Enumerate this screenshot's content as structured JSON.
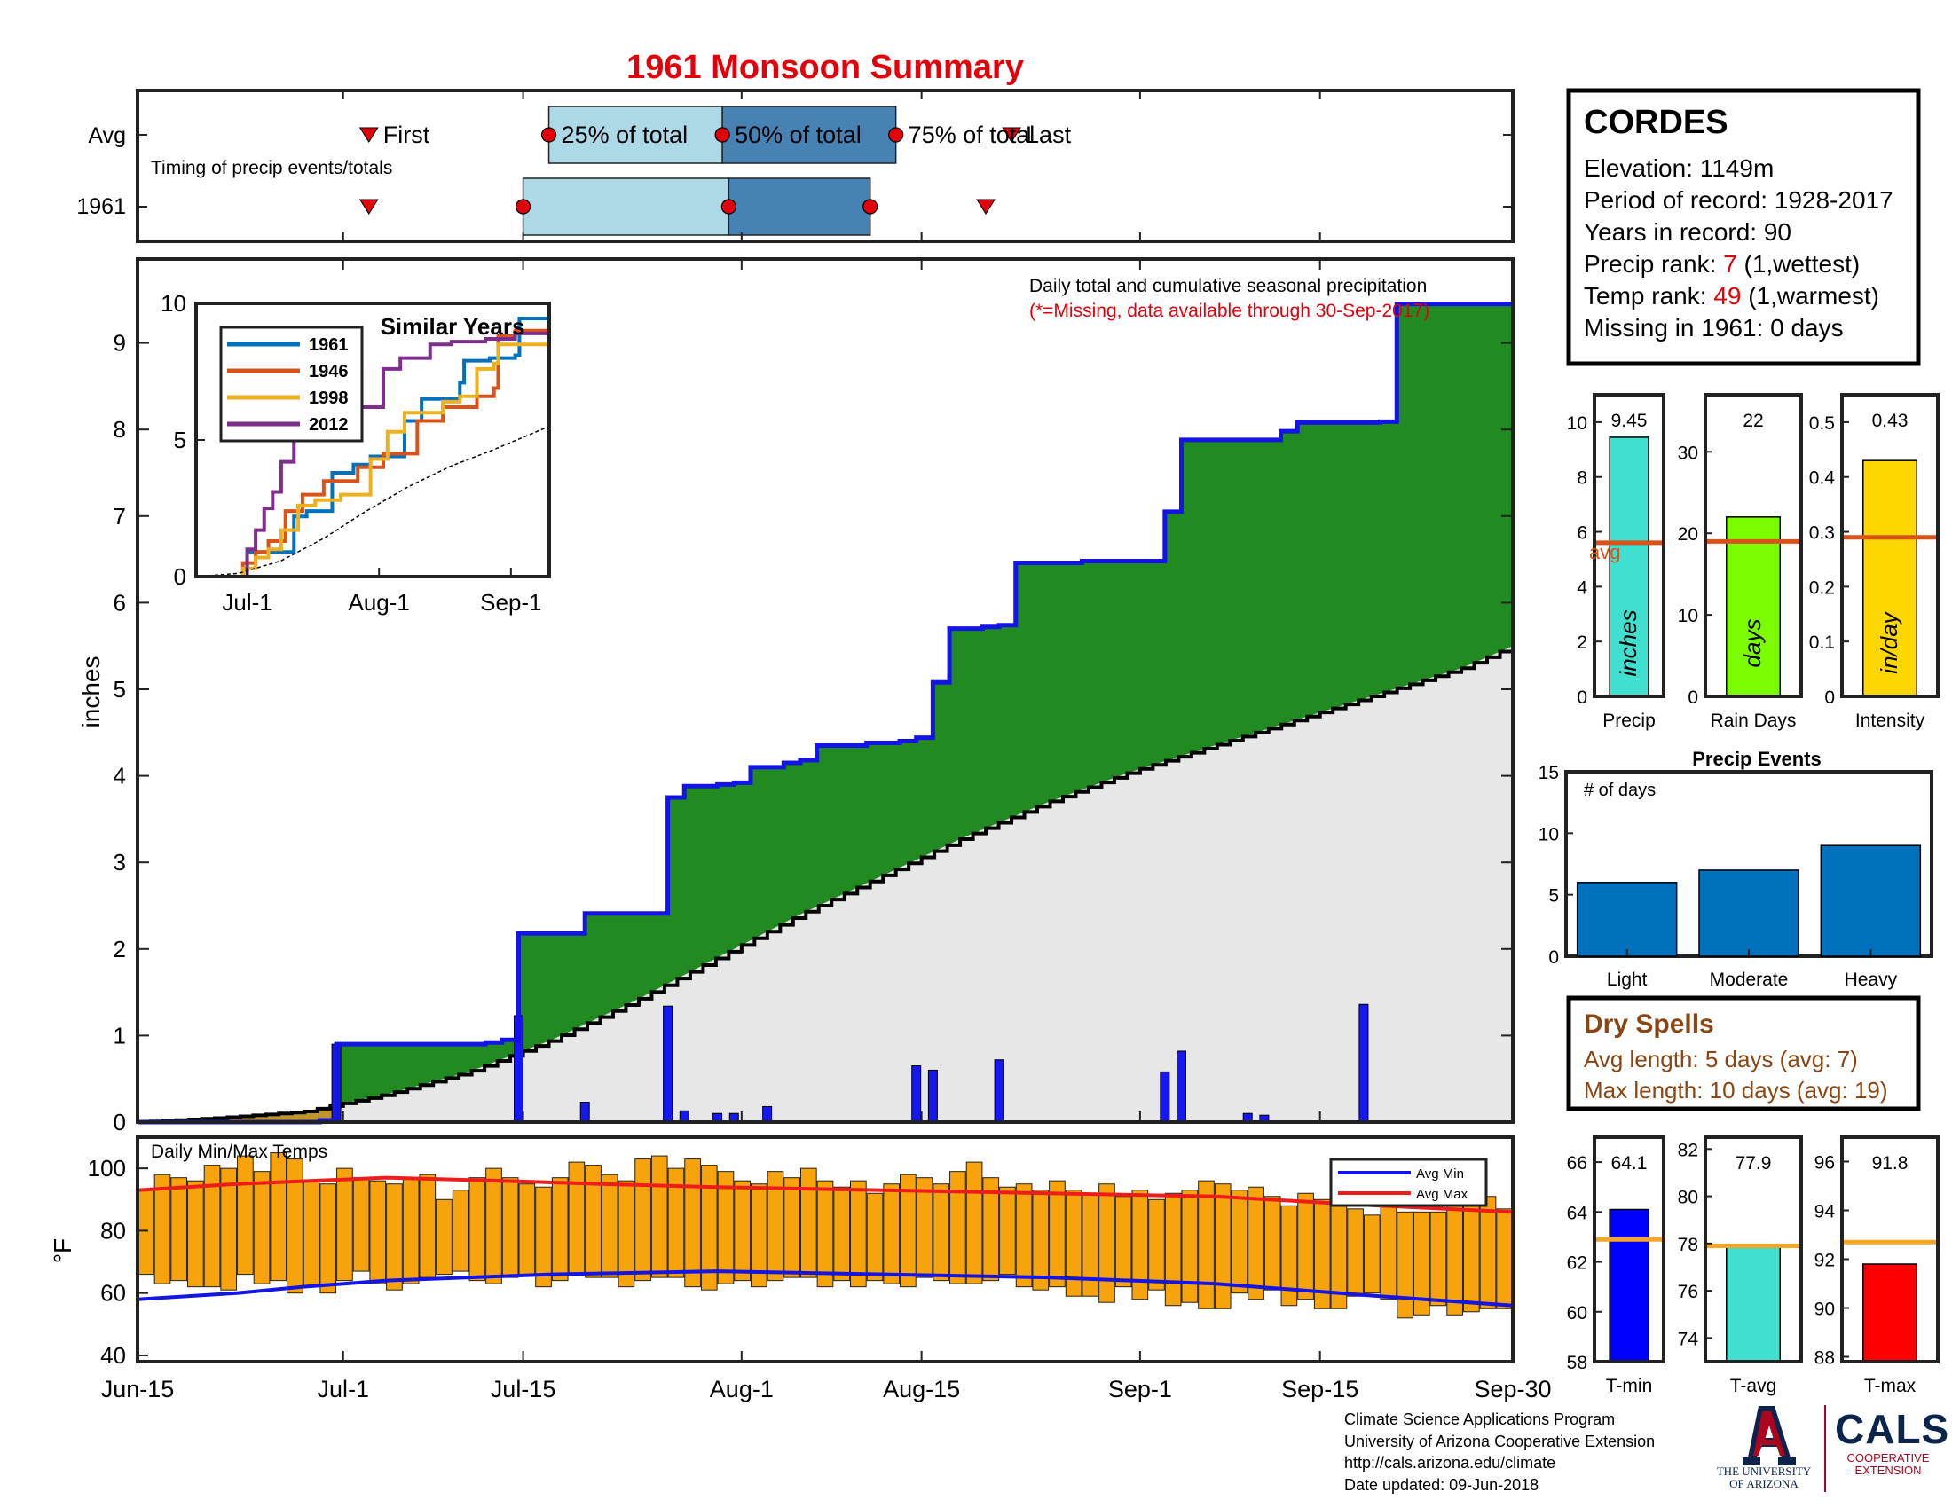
{
  "title": "1961 Monsoon Summary",
  "colors": {
    "title": "#e3000b",
    "green_fill": "#218a21",
    "avg_fill": "#e8e7e7",
    "cum_line": "#1414e6",
    "daily_bar": "#1717f2",
    "temp_bar": "#f7a30b",
    "avg_max": "#ef1c1c",
    "avg_min": "#1414e6",
    "timing_light": "#add8e6",
    "timing_dark": "#4682b4",
    "marker": "#e3000b",
    "rank_red": "#e3000b",
    "dry_spell": "#8b4513",
    "avg_line": "#d95319",
    "temp_avg_line": "#f5a623"
  },
  "timing_panel": {
    "row_labels": [
      "Avg",
      "1961"
    ],
    "caption": "Timing of precip events/totals",
    "labels": [
      "First",
      "25% of total",
      "50% of total",
      "75% of total",
      "Last"
    ],
    "avg_days": {
      "first": 18,
      "p25": 32,
      "p50": 45.5,
      "p75": 59,
      "last": 68
    },
    "year_days": {
      "first": 18,
      "p25": 30,
      "p50": 46,
      "p75": 57,
      "last": 66
    }
  },
  "station": {
    "name": "CORDES",
    "elevation_label": "Elevation: 1149m",
    "period_label": "Period of record: 1928-2017",
    "years_label": "Years in record: 90",
    "precip_rank_prefix": "Precip rank: ",
    "precip_rank_value": "7",
    "precip_rank_suffix": " (1,wettest)",
    "temp_rank_prefix": "Temp rank: ",
    "temp_rank_value": "49",
    "temp_rank_suffix": " (1,warmest)",
    "missing_label": "Missing in 1961: 0 days"
  },
  "main_chart": {
    "ylabel": "inches",
    "note": "Daily total and cumulative seasonal precipitation",
    "missing_note": "(*=Missing, data available through 30-Sep-2017)",
    "x_ticks": [
      "Jun-15",
      "Jul-1",
      "Jul-15",
      "Aug-1",
      "Aug-15",
      "Sep-1",
      "Sep-15",
      "Sep-30"
    ],
    "y_ticks": [
      "0",
      "1",
      "2",
      "3",
      "4",
      "5",
      "6",
      "7",
      "8",
      "9"
    ]
  },
  "inset": {
    "title": "Similar Years",
    "x_ticks": [
      "Jul-1",
      "Aug-1",
      "Sep-1"
    ],
    "y_ticks": [
      "0",
      "5",
      "10"
    ],
    "legend": [
      "1961",
      "1946",
      "1998",
      "2012"
    ]
  },
  "bar_panels": [
    {
      "value_label": "9.45",
      "unit": "inches",
      "xlabel": "Precip",
      "avg_label": "avg",
      "y_ticks": [
        "0",
        "2",
        "4",
        "6",
        "8",
        "10"
      ]
    },
    {
      "value_label": "22",
      "unit": "days",
      "xlabel": "Rain Days",
      "y_ticks": [
        "0",
        "10",
        "20",
        "30"
      ]
    },
    {
      "value_label": "0.43",
      "unit": "in/day",
      "xlabel": "Intensity",
      "y_ticks": [
        "0",
        "0.1",
        "0.2",
        "0.3",
        "0.4",
        "0.5"
      ]
    }
  ],
  "events": {
    "title": "Precip Events",
    "ylabel": "# of days",
    "y_ticks": [
      "0",
      "5",
      "10",
      "15"
    ],
    "categories": [
      "Light",
      "Moderate",
      "Heavy"
    ]
  },
  "dry_spells": {
    "title": "Dry Spells",
    "avg_length": "Avg length: 5 days (avg: 7)",
    "max_length": "Max length: 10 days (avg: 19)"
  },
  "temp_chart": {
    "title": "Daily Min/Max Temps",
    "ylabel": "°F",
    "legend": [
      "Avg Min",
      "Avg Max"
    ],
    "y_ticks": [
      "40",
      "60",
      "80",
      "100"
    ]
  },
  "temp_panels": [
    {
      "value_label": "64.1",
      "xlabel": "T-min",
      "y_ticks": [
        "58",
        "60",
        "62",
        "64",
        "66"
      ]
    },
    {
      "value_label": "77.9",
      "xlabel": "T-avg",
      "y_ticks": [
        "74",
        "76",
        "78",
        "80",
        "82"
      ]
    },
    {
      "value_label": "91.8",
      "xlabel": "T-max",
      "y_ticks": [
        "88",
        "90",
        "92",
        "94",
        "96"
      ]
    }
  ],
  "credits": {
    "line1": "Climate Science Applications Program",
    "line2": "University of Arizona Cooperative Extension",
    "line3": "http://cals.arizona.edu/climate",
    "line4": " Date updated: 09-Jun-2018"
  },
  "logos": {
    "ua_letter": "A",
    "ua_line1": "THE UNIVERSITY",
    "ua_line2": "OF ARIZONA",
    "cals_word": "CALS",
    "cals_line1": "COOPERATIVE",
    "cals_line2": "EXTENSION"
  },
  "chart_data": [
    {
      "type": "area",
      "name": "cumulative_precip",
      "title": "Daily total and cumulative seasonal precipitation",
      "ylabel": "inches",
      "xlim": [
        "Jun-15",
        "Sep-30"
      ],
      "ylim": [
        0,
        10
      ],
      "cumulative_1961": [
        [
          0,
          0
        ],
        [
          11,
          0.02
        ],
        [
          12,
          0.9
        ],
        [
          21,
          0.92
        ],
        [
          22,
          0.95
        ],
        [
          23,
          2.18
        ],
        [
          26,
          2.18
        ],
        [
          27,
          2.41
        ],
        [
          31,
          2.41
        ],
        [
          32,
          3.75
        ],
        [
          33,
          3.88
        ],
        [
          35,
          3.9
        ],
        [
          36,
          3.92
        ],
        [
          37,
          4.1
        ],
        [
          39,
          4.15
        ],
        [
          40,
          4.18
        ],
        [
          41,
          4.35
        ],
        [
          44,
          4.38
        ],
        [
          46,
          4.4
        ],
        [
          47,
          4.44
        ],
        [
          48,
          5.08
        ],
        [
          49,
          5.7
        ],
        [
          51,
          5.72
        ],
        [
          52,
          5.74
        ],
        [
          53,
          6.46
        ],
        [
          57,
          6.48
        ],
        [
          62,
          7.05
        ],
        [
          63,
          7.88
        ],
        [
          68,
          7.88
        ],
        [
          69,
          7.98
        ],
        [
          70,
          8.08
        ],
        [
          75,
          8.09
        ],
        [
          76,
          9.45
        ],
        [
          83,
          9.45
        ]
      ],
      "avg_cumulative": [
        [
          0,
          0
        ],
        [
          5,
          0.05
        ],
        [
          10,
          0.12
        ],
        [
          12,
          0.2
        ],
        [
          15,
          0.32
        ],
        [
          20,
          0.58
        ],
        [
          25,
          0.95
        ],
        [
          30,
          1.4
        ],
        [
          35,
          1.9
        ],
        [
          40,
          2.4
        ],
        [
          45,
          2.85
        ],
        [
          50,
          3.3
        ],
        [
          55,
          3.7
        ],
        [
          60,
          4.05
        ],
        [
          65,
          4.35
        ],
        [
          70,
          4.65
        ],
        [
          75,
          4.95
        ],
        [
          80,
          5.25
        ],
        [
          83,
          5.5
        ]
      ],
      "daily_precip": [
        [
          12,
          0.9
        ],
        [
          23,
          1.23
        ],
        [
          27,
          0.23
        ],
        [
          32,
          1.34
        ],
        [
          33,
          0.13
        ],
        [
          35,
          0.1
        ],
        [
          36,
          0.1
        ],
        [
          38,
          0.18
        ],
        [
          47,
          0.65
        ],
        [
          48,
          0.6
        ],
        [
          52,
          0.72
        ],
        [
          62,
          0.58
        ],
        [
          63,
          0.82
        ],
        [
          67,
          0.1
        ],
        [
          68,
          0.08
        ],
        [
          74,
          1.36
        ]
      ]
    },
    {
      "type": "line",
      "name": "similar_years",
      "title": "Similar Years",
      "xlim": [
        "Jun-15",
        "Sep-30"
      ],
      "ylim": [
        0,
        10
      ],
      "series": [
        {
          "name": "1961",
          "points": [
            [
              0,
              0
            ],
            [
              11,
              0
            ],
            [
              12,
              0.9
            ],
            [
              22,
              0.9
            ],
            [
              23,
              2.2
            ],
            [
              26,
              2.4
            ],
            [
              32,
              3.8
            ],
            [
              37,
              4.1
            ],
            [
              41,
              4.4
            ],
            [
              47,
              4.4
            ],
            [
              49,
              5.7
            ],
            [
              53,
              6.5
            ],
            [
              62,
              7.1
            ],
            [
              63,
              7.9
            ],
            [
              69,
              8.0
            ],
            [
              75,
              8.1
            ],
            [
              76,
              9.45
            ],
            [
              83,
              9.45
            ]
          ]
        },
        {
          "name": "1946",
          "points": [
            [
              0,
              0
            ],
            [
              10,
              0
            ],
            [
              11,
              0.5
            ],
            [
              14,
              0.9
            ],
            [
              17,
              1.3
            ],
            [
              21,
              2.4
            ],
            [
              25,
              3.0
            ],
            [
              30,
              3.5
            ],
            [
              38,
              4.0
            ],
            [
              44,
              4.5
            ],
            [
              52,
              5.7
            ],
            [
              58,
              6.2
            ],
            [
              66,
              6.6
            ],
            [
              70,
              6.9
            ],
            [
              71,
              8.8
            ],
            [
              75,
              9.0
            ],
            [
              83,
              9.05
            ]
          ]
        },
        {
          "name": "1998",
          "points": [
            [
              0,
              0
            ],
            [
              10,
              0
            ],
            [
              11,
              0.3
            ],
            [
              14,
              0.7
            ],
            [
              17,
              1.0
            ],
            [
              20,
              1.7
            ],
            [
              24,
              2.6
            ],
            [
              28,
              2.8
            ],
            [
              34,
              3.0
            ],
            [
              38,
              3.0
            ],
            [
              41,
              4.3
            ],
            [
              45,
              5.3
            ],
            [
              49,
              6.0
            ],
            [
              58,
              6.4
            ],
            [
              62,
              6.6
            ],
            [
              66,
              7.6
            ],
            [
              70,
              7.8
            ],
            [
              71,
              8.5
            ],
            [
              83,
              8.85
            ]
          ]
        },
        {
          "name": "2012",
          "points": [
            [
              0,
              0
            ],
            [
              11,
              0
            ],
            [
              12,
              1.0
            ],
            [
              14,
              1.7
            ],
            [
              16,
              2.5
            ],
            [
              18,
              3.1
            ],
            [
              20,
              4.2
            ],
            [
              23,
              5.0
            ],
            [
              28,
              5.2
            ],
            [
              35,
              6.2
            ],
            [
              44,
              7.6
            ],
            [
              48,
              8.0
            ],
            [
              55,
              8.5
            ],
            [
              60,
              8.6
            ],
            [
              68,
              8.7
            ],
            [
              75,
              8.9
            ],
            [
              83,
              8.9
            ]
          ]
        },
        {
          "name": "avg",
          "points": [
            [
              0,
              0
            ],
            [
              10,
              0.12
            ],
            [
              20,
              0.58
            ],
            [
              30,
              1.4
            ],
            [
              40,
              2.4
            ],
            [
              50,
              3.3
            ],
            [
              60,
              4.05
            ],
            [
              70,
              4.65
            ],
            [
              83,
              5.5
            ]
          ]
        }
      ]
    },
    {
      "type": "bar",
      "name": "timing",
      "categories": [
        "First",
        "25% of total",
        "50% of total",
        "75% of total",
        "Last"
      ],
      "series": [
        {
          "name": "Avg",
          "values": [
            18,
            32,
            45.5,
            59,
            68
          ]
        },
        {
          "name": "1961",
          "values": [
            18,
            30,
            46,
            57,
            66
          ]
        }
      ]
    },
    {
      "type": "bar",
      "name": "Precip",
      "categories": [
        "Precip"
      ],
      "values": [
        9.45
      ],
      "avg": 5.6,
      "ylim": [
        0,
        11
      ],
      "color": "#40e0d0"
    },
    {
      "type": "bar",
      "name": "Rain Days",
      "categories": [
        "Rain Days"
      ],
      "values": [
        22
      ],
      "avg": 19,
      "ylim": [
        0,
        37
      ],
      "color": "#7cfc00"
    },
    {
      "type": "bar",
      "name": "Intensity",
      "categories": [
        "Intensity"
      ],
      "values": [
        0.43
      ],
      "avg": 0.29,
      "ylim": [
        0,
        0.55
      ],
      "color": "#ffd700"
    },
    {
      "type": "bar",
      "name": "Precip Events",
      "title": "Precip Events",
      "ylabel": "# of days",
      "categories": [
        "Light",
        "Moderate",
        "Heavy"
      ],
      "values": [
        6,
        7,
        9
      ],
      "ylim": [
        0,
        15
      ],
      "color": "#0072bd"
    },
    {
      "type": "bar",
      "name": "Daily Min/Max Temps",
      "title": "Daily Min/Max Temps",
      "ylabel": "°F",
      "ylim": [
        40,
        110
      ],
      "x_start": "Jun-15",
      "tmax": [
        93,
        98,
        97,
        96,
        101,
        100,
        104,
        99,
        105,
        103,
        96,
        95,
        100,
        97,
        96,
        95,
        97,
        98,
        90,
        93,
        97,
        100,
        97,
        95,
        94,
        97,
        102,
        101,
        98,
        96,
        103,
        104,
        100,
        103,
        101,
        99,
        96,
        95,
        99,
        97,
        100,
        96,
        94,
        96,
        92,
        95,
        98,
        97,
        95,
        99,
        102,
        97,
        94,
        95,
        93,
        96,
        93,
        92,
        95,
        91,
        93,
        90,
        92,
        93,
        96,
        95,
        93,
        94,
        91,
        88,
        92,
        90,
        88,
        87,
        85,
        88,
        86,
        86,
        86,
        90,
        89,
        91,
        87
      ],
      "tmin": [
        66,
        63,
        64,
        62,
        62,
        61,
        66,
        63,
        64,
        60,
        62,
        60,
        64,
        67,
        63,
        61,
        63,
        65,
        66,
        67,
        64,
        63,
        65,
        66,
        62,
        64,
        66,
        65,
        65,
        62,
        64,
        65,
        65,
        62,
        61,
        63,
        64,
        62,
        64,
        65,
        65,
        62,
        64,
        62,
        64,
        63,
        62,
        65,
        64,
        63,
        63,
        64,
        66,
        62,
        61,
        62,
        59,
        59,
        57,
        62,
        58,
        61,
        56,
        57,
        55,
        55,
        60,
        58,
        61,
        56,
        58,
        55,
        55,
        59,
        60,
        58,
        52,
        53,
        56,
        53,
        54,
        55,
        55
      ],
      "avg_max": [
        [
          0,
          93
        ],
        [
          6,
          95
        ],
        [
          15,
          97
        ],
        [
          22,
          96
        ],
        [
          28,
          95
        ],
        [
          35,
          94
        ],
        [
          45,
          93
        ],
        [
          55,
          92
        ],
        [
          65,
          91
        ],
        [
          75,
          88
        ],
        [
          83,
          86
        ]
      ],
      "avg_min": [
        [
          0,
          58
        ],
        [
          6,
          60
        ],
        [
          10,
          62
        ],
        [
          15,
          64
        ],
        [
          20,
          65
        ],
        [
          25,
          66
        ],
        [
          35,
          67
        ],
        [
          45,
          66
        ],
        [
          55,
          65
        ],
        [
          65,
          63
        ],
        [
          75,
          59
        ],
        [
          83,
          56
        ]
      ]
    },
    {
      "type": "bar",
      "name": "T-min",
      "categories": [
        "T-min"
      ],
      "values": [
        64.1
      ],
      "avg": 62.9,
      "ylim": [
        58,
        67
      ],
      "color": "#0000ff"
    },
    {
      "type": "bar",
      "name": "T-avg",
      "categories": [
        "T-avg"
      ],
      "values": [
        77.9
      ],
      "avg": 77.9,
      "ylim": [
        73,
        82.5
      ],
      "color": "#40e0d0"
    },
    {
      "type": "bar",
      "name": "T-max",
      "categories": [
        "T-max"
      ],
      "values": [
        91.8
      ],
      "avg": 92.7,
      "ylim": [
        87.8,
        97
      ],
      "color": "#ff0000"
    }
  ]
}
